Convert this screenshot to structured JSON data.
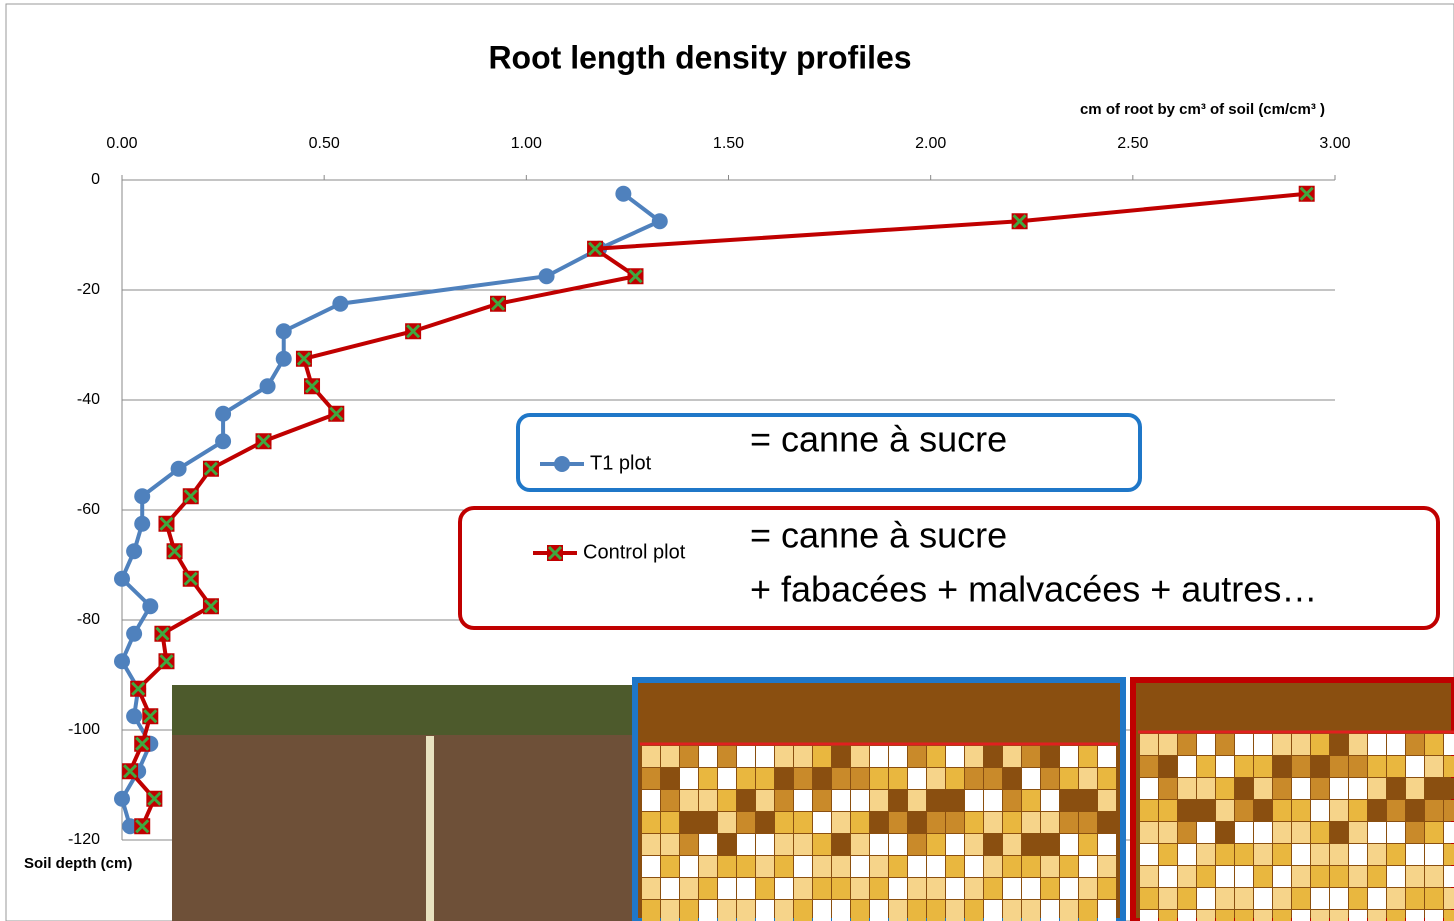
{
  "chart_data": {
    "type": "line",
    "title": "Root length density profiles",
    "x_axis_label": "cm of root by cm³ of soil (cm/cm³ )",
    "y_axis_label": "Soil depth (cm)",
    "y": [
      -2.5,
      -7.5,
      -12.5,
      -17.5,
      -22.5,
      -27.5,
      -32.5,
      -37.5,
      -42.5,
      -47.5,
      -52.5,
      -57.5,
      -62.5,
      -67.5,
      -72.5,
      -77.5,
      -82.5,
      -87.5,
      -92.5,
      -97.5,
      -102.5,
      -107.5,
      -112.5,
      -117.5
    ],
    "series": [
      {
        "name": "T1 plot",
        "color": "#4f81bd",
        "marker": "circle",
        "annotation": "= canne à sucre",
        "values": [
          1.24,
          1.33,
          1.18,
          1.05,
          0.54,
          0.4,
          0.4,
          0.36,
          0.25,
          0.25,
          0.14,
          0.05,
          0.05,
          0.03,
          0.0,
          0.07,
          0.03,
          0.0,
          0.04,
          0.03,
          0.07,
          0.04,
          0.0,
          0.02
        ]
      },
      {
        "name": "Control plot",
        "color": "#c00000",
        "marker": "square",
        "annotation": [
          "= canne à sucre",
          "+ fabacées + malvacées + autres…"
        ],
        "values": [
          2.93,
          2.22,
          1.17,
          1.27,
          0.93,
          0.72,
          0.45,
          0.47,
          0.53,
          0.35,
          0.22,
          0.17,
          0.11,
          0.13,
          0.17,
          0.22,
          0.1,
          0.11,
          0.04,
          0.07,
          0.05,
          0.02,
          0.08,
          0.05
        ]
      }
    ],
    "xlim": [
      0,
      3
    ],
    "xticks": [
      {
        "value": 0,
        "label": "0.00"
      },
      {
        "value": 0.5,
        "label": "0.50"
      },
      {
        "value": 1,
        "label": "1.00"
      },
      {
        "value": 1.5,
        "label": "1.50"
      },
      {
        "value": 2,
        "label": "2.00"
      },
      {
        "value": 2.5,
        "label": "2.50"
      },
      {
        "value": 3,
        "label": "3.00"
      }
    ],
    "ylim": [
      -120,
      0
    ],
    "yticks": [
      0,
      -20,
      -40,
      -60,
      -80,
      -100,
      -120
    ],
    "grid": true
  }
}
